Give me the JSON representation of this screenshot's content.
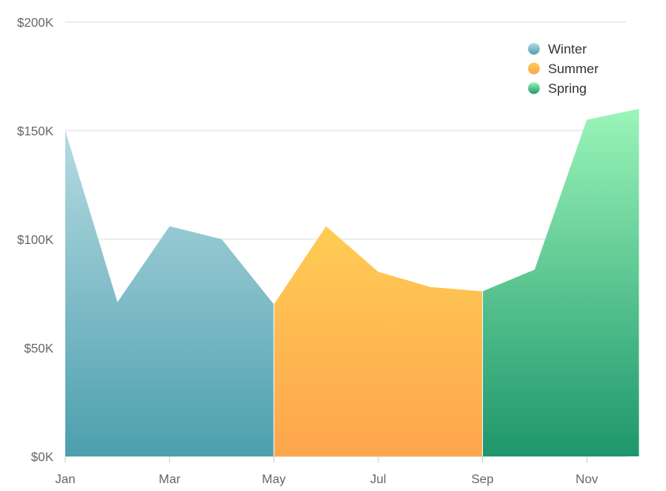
{
  "chart_data": {
    "type": "area",
    "x": [
      "Jan",
      "Feb",
      "Mar",
      "Apr",
      "May",
      "Jun",
      "Jul",
      "Aug",
      "Sep",
      "Oct",
      "Nov",
      "Dec"
    ],
    "x_tick_labels": [
      "Jan",
      "Mar",
      "May",
      "Jul",
      "Sep",
      "Nov"
    ],
    "y_tick_labels": [
      "$0K",
      "$50K",
      "$100K",
      "$150K",
      "$200K"
    ],
    "y_ticks": [
      0,
      50000,
      100000,
      150000,
      200000
    ],
    "ylim": [
      0,
      200000
    ],
    "grid": true,
    "legend_position": "top-right",
    "series": [
      {
        "name": "Winter",
        "color_top": "#b6dbe2",
        "color_bottom": "#4c9fae",
        "points": [
          {
            "x": "Jan",
            "y": 150000
          },
          {
            "x": "Feb",
            "y": 71000
          },
          {
            "x": "Mar",
            "y": 106000
          },
          {
            "x": "Apr",
            "y": 100000
          },
          {
            "x": "May",
            "y": 70000
          }
        ]
      },
      {
        "name": "Summer",
        "color_top": "#ffcc55",
        "color_bottom": "#fea54d",
        "points": [
          {
            "x": "May",
            "y": 70000
          },
          {
            "x": "Jun",
            "y": 106000
          },
          {
            "x": "Jul",
            "y": 85000
          },
          {
            "x": "Aug",
            "y": 78000
          },
          {
            "x": "Sep",
            "y": 76000
          }
        ]
      },
      {
        "name": "Spring",
        "color_top": "#9af5b8",
        "color_bottom": "#1e966b",
        "points": [
          {
            "x": "Sep",
            "y": 76000
          },
          {
            "x": "Oct",
            "y": 86000
          },
          {
            "x": "Nov",
            "y": 155000
          },
          {
            "x": "Dec",
            "y": 160000
          }
        ]
      }
    ]
  }
}
